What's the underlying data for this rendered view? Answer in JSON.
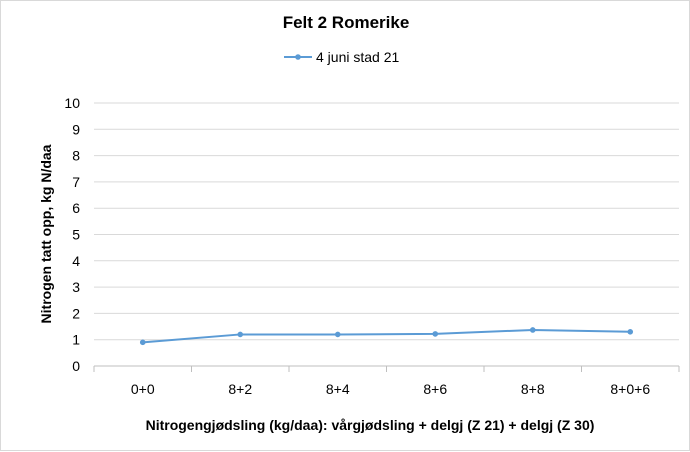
{
  "chart_data": {
    "type": "line",
    "title": "Felt 2 Romerike",
    "xlabel": "Nitrogengjødsling (kg/daa): vårgjødsling + delgj (Z 21) + delgj (Z 30)",
    "ylabel": "Nitrogen tatt opp, kg N/daa",
    "categories": [
      "0+0",
      "8+2",
      "8+4",
      "8+6",
      "8+8",
      "8+0+6"
    ],
    "series": [
      {
        "name": "4 juni stad 21",
        "values": [
          0.9,
          1.2,
          1.2,
          1.22,
          1.37,
          1.3
        ],
        "color": "#5b9bd5"
      }
    ],
    "ylim": [
      0,
      10
    ],
    "yticks": [
      "0",
      "1",
      "2",
      "3",
      "4",
      "5",
      "6",
      "7",
      "8",
      "9",
      "10"
    ],
    "grid": true,
    "legend_position": "top"
  }
}
